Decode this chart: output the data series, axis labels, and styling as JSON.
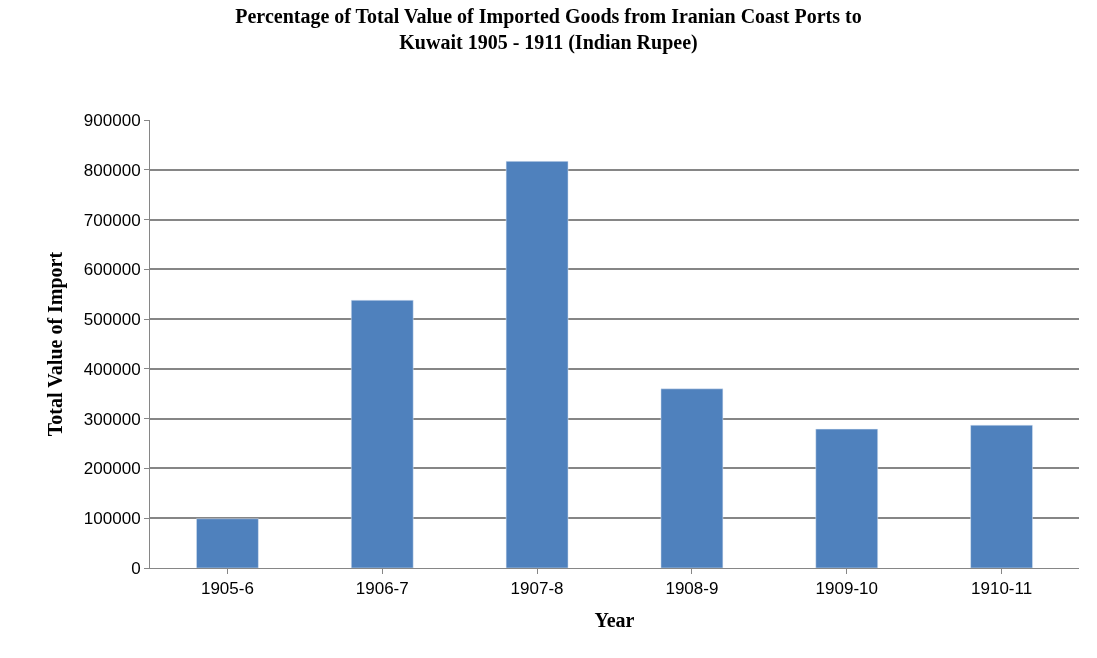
{
  "chart_data": {
    "type": "bar",
    "title": "Percentage of Total Value of Imported Goods from Iranian Coast Ports to Kuwait 1905 - 1911 (Indian Rupee)",
    "xlabel": "Year",
    "ylabel": "Total Value of Import",
    "categories": [
      "1905-6",
      "1906-7",
      "1907-8",
      "1908-9",
      "1909-10",
      "1910-11"
    ],
    "values": [
      99000,
      538000,
      817000,
      360000,
      279000,
      287000
    ],
    "color": "#4f81bd",
    "ylim": [
      0,
      900000
    ],
    "yticks": [
      0,
      100000,
      200000,
      300000,
      400000,
      500000,
      600000,
      700000,
      800000,
      900000
    ],
    "grid": "y",
    "legend": false
  }
}
